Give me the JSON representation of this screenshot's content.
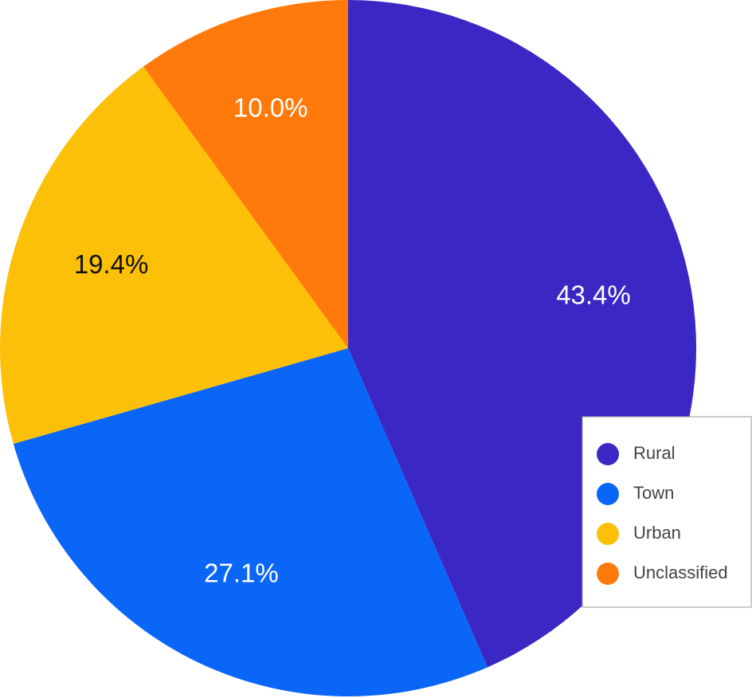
{
  "chart_data": {
    "type": "pie",
    "categories": [
      "Rural",
      "Town",
      "Urban",
      "Unclassified"
    ],
    "values": [
      43.4,
      27.1,
      19.4,
      10.0
    ],
    "value_labels": [
      "43.4%",
      "27.1%",
      "19.4%",
      "10.0%"
    ],
    "colors": [
      "#3b27c4",
      "#0a66f7",
      "#fcc008",
      "#ff7a0a"
    ],
    "legend": "bottom-right"
  }
}
